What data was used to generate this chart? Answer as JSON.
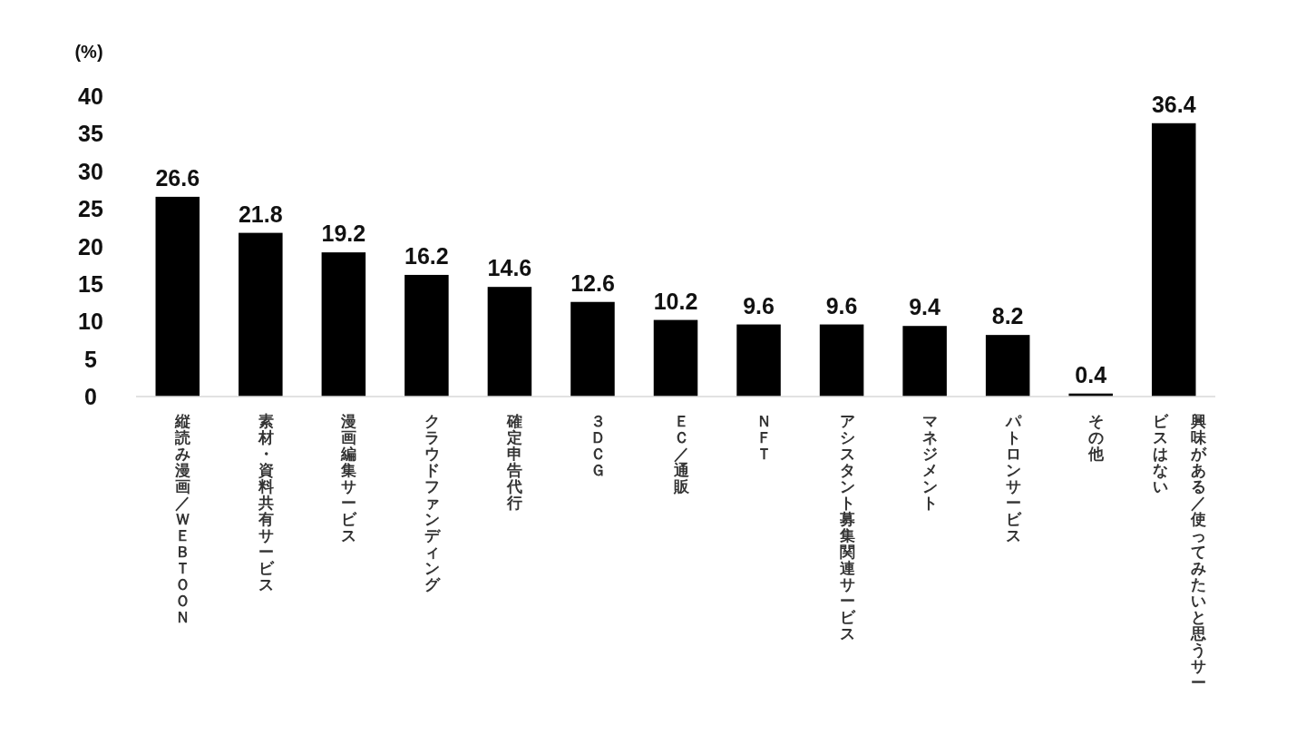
{
  "chart_data": {
    "type": "bar",
    "ylabel": "(%)",
    "categories": [
      "縦読み漫画／ＷＥＢＴＯＯＮ",
      "素材・資料共有サービス",
      "漫画編集サービス",
      "クラウドファンディング",
      "確定申告代行",
      "３ＤＣＧ",
      "ＥＣ／通販",
      "ＮＦＴ",
      "アシスタント募集関連サービス",
      "マネジメント",
      "パトロンサービス",
      "その他",
      "興味がある／使ってみたいと思うサービスはない"
    ],
    "values": [
      26.6,
      21.8,
      19.2,
      16.2,
      14.6,
      12.6,
      10.2,
      9.6,
      9.6,
      9.4,
      8.2,
      0.4,
      36.4
    ],
    "color": "#000000",
    "ylim": [
      0,
      40
    ],
    "yticks": [
      0,
      5,
      10,
      15,
      20,
      25,
      30,
      35,
      40
    ],
    "data_labels": true
  }
}
